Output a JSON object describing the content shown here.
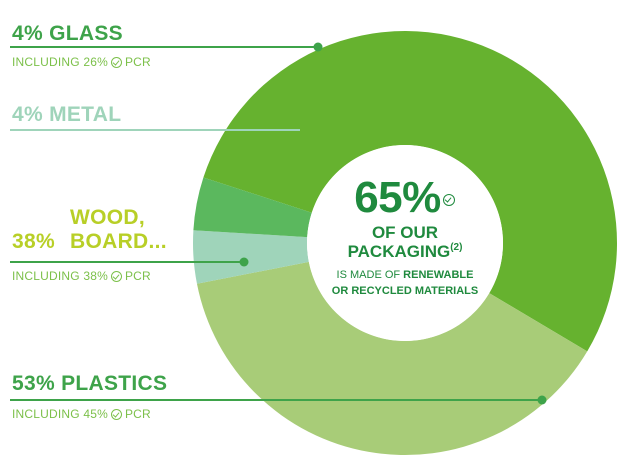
{
  "chart_data": {
    "type": "pie",
    "variant": "donut",
    "slices": [
      {
        "label": "4% GLASS",
        "value": 4,
        "sub": "INCLUDING 26%",
        "sub_suffix": "PCR",
        "color": "#5bb85e"
      },
      {
        "label": "4% METAL",
        "value": 4,
        "color": "#9fd4ba"
      },
      {
        "label_pct": "38%",
        "label_line1": "WOOD,",
        "label_line2": "BOARD...",
        "value": 38,
        "sub": "INCLUDING 38%",
        "sub_suffix": "PCR",
        "color": "#a8cc78"
      },
      {
        "label": "53% PLASTICS",
        "value": 53,
        "sub": "INCLUDING 45%",
        "sub_suffix": "PCR",
        "color": "#66b22f"
      }
    ],
    "center": {
      "value": "65%",
      "line1": "OF OUR",
      "line2": "PACKAGING",
      "line2_sup": "(2)",
      "line3_prefix": "IS MADE OF",
      "line3_bold": "RENEWABLE",
      "line4": "OR RECYCLED MATERIALS"
    },
    "leader_color": "#3ea34a"
  }
}
